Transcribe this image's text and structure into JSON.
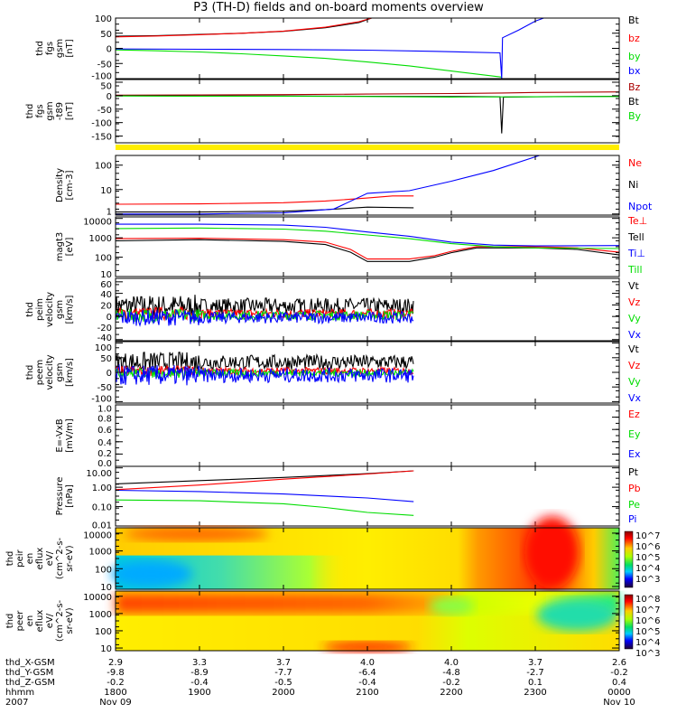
{
  "title": "P3 (TH-D) fields and on-board moments overview",
  "chart_data": {
    "type": "line",
    "x_range_hours": [
      18,
      24
    ],
    "panels": [
      {
        "id": "fgs",
        "ylabel": [
          "thd",
          "fgs",
          "gsm",
          "[nT]"
        ],
        "scale": "linear",
        "ylim": [
          -100,
          100
        ],
        "ticks": [
          {
            "v": 100,
            "l": "100"
          },
          {
            "v": 50,
            "l": "50"
          },
          {
            "v": 0,
            "l": "0"
          },
          {
            "v": -50,
            "l": "-50"
          },
          {
            "v": -100,
            "l": "-100"
          }
        ],
        "series": [
          {
            "name": "Bt",
            "color": "#000000",
            "x": [
              18,
              18.5,
              19,
              19.5,
              20,
              20.5,
              20.9,
              21.05
            ],
            "y": [
              40,
              42,
              46,
              50,
              56,
              68,
              85,
              100
            ]
          },
          {
            "name": "bz",
            "color": "#ff0000",
            "x": [
              18,
              18.5,
              19,
              19.5,
              20,
              20.5,
              20.9,
              21.05
            ],
            "y": [
              38,
              41,
              45,
              50,
              57,
              70,
              88,
              100
            ]
          },
          {
            "name": "by",
            "color": "#00dd00",
            "x": [
              18,
              18.5,
              19,
              19.5,
              20,
              20.5,
              21,
              21.5,
              22,
              22.6
            ],
            "y": [
              -5,
              -8,
              -12,
              -18,
              -25,
              -33,
              -45,
              -58,
              -75,
              -95
            ]
          },
          {
            "name": "bx",
            "color": "#0000ff",
            "x": [
              18,
              19,
              20,
              21,
              21.8,
              22.58,
              22.6,
              22.61,
              22.8,
              23,
              23.1
            ],
            "y": [
              -2,
              -3,
              -4,
              -6,
              -10,
              -15,
              -100,
              35,
              60,
              90,
              100
            ]
          }
        ]
      },
      {
        "id": "fgs_t89",
        "ylabel": [
          "thd",
          "fgs",
          "gsm",
          "-t89",
          "[nT]"
        ],
        "scale": "linear",
        "ylim": [
          -175,
          60
        ],
        "ticks": [
          {
            "v": 50,
            "l": "50"
          },
          {
            "v": 0,
            "l": "0"
          },
          {
            "v": -50,
            "l": "-50"
          },
          {
            "v": -100,
            "l": "-100"
          },
          {
            "v": -150,
            "l": "-150"
          }
        ],
        "series": [
          {
            "name": "Bz",
            "color": "#aa0000",
            "x": [
              18,
              19,
              20,
              21,
              22,
              22.6,
              23,
              24
            ],
            "y": [
              2,
              3,
              4,
              6,
              8,
              10,
              12,
              14
            ]
          },
          {
            "name": "Bt",
            "color": "#000000",
            "x": [
              18,
              19,
              20,
              21,
              22,
              22.58,
              22.6,
              22.62,
              23,
              24
            ],
            "y": [
              0,
              -1,
              -1,
              -2,
              -3,
              -4,
              -140,
              -5,
              -4,
              -2
            ]
          },
          {
            "name": "By",
            "color": "#00dd00",
            "x": [
              18,
              19,
              20,
              21,
              22,
              23,
              24
            ],
            "y": [
              -1,
              -2,
              -2,
              -3,
              -5,
              -4,
              -3
            ]
          }
        ]
      },
      {
        "id": "density",
        "ylabel": [
          "Density",
          "[cm-3]"
        ],
        "scale": "log",
        "ylim": [
          0.9,
          250
        ],
        "ticks": [
          {
            "v": 100,
            "l": "100"
          },
          {
            "v": 10,
            "l": "10"
          },
          {
            "v": 1,
            "l": "1"
          }
        ],
        "series": [
          {
            "name": "Ne",
            "color": "#ff0000",
            "x": [
              18,
              19,
              20,
              20.5,
              21,
              21.3,
              21.55
            ],
            "y": [
              2.5,
              2.6,
              2.9,
              3.4,
              4.5,
              5.5,
              5.5
            ]
          },
          {
            "name": "Ni",
            "color": "#000000",
            "x": [
              18,
              19,
              20,
              20.5,
              21,
              21.55
            ],
            "y": [
              1.2,
              1.2,
              1.3,
              1.5,
              1.9,
              1.8
            ]
          },
          {
            "name": "Npot",
            "color": "#0000ff",
            "x": [
              18,
              19,
              20,
              20.6,
              21,
              21.5,
              22,
              22.5,
              23.05
            ],
            "y": [
              1.0,
              1.0,
              1.1,
              1.6,
              7,
              9,
              22,
              60,
              250
            ]
          }
        ]
      },
      {
        "id": "temp",
        "ylabel": [
          "magt3",
          "[eV]"
        ],
        "scale": "log",
        "ylim": [
          10,
          12000
        ],
        "ticks": [
          {
            "v": 10000,
            "l": "10000"
          },
          {
            "v": 1000,
            "l": "1000"
          },
          {
            "v": 100,
            "l": "100"
          },
          {
            "v": 10,
            "l": "10"
          }
        ],
        "series": [
          {
            "name": "Te⊥",
            "color": "#ff0000",
            "x": [
              18,
              19,
              20,
              20.5,
              20.8,
              21,
              21.5,
              21.8,
              22,
              22.3,
              23,
              23.5,
              24
            ],
            "y": [
              900,
              950,
              800,
              600,
              250,
              80,
              80,
              120,
              200,
              350,
              350,
              300,
              180
            ]
          },
          {
            "name": "Tell",
            "color": "#000000",
            "x": [
              18,
              19,
              20,
              20.5,
              20.8,
              21,
              21.5,
              21.8,
              22,
              22.3,
              23,
              23.5,
              24
            ],
            "y": [
              700,
              800,
              650,
              450,
              180,
              60,
              60,
              100,
              170,
              300,
              300,
              250,
              130
            ]
          },
          {
            "name": "Ti⊥",
            "color": "#0000ff",
            "x": [
              18,
              19,
              20,
              20.5,
              21,
              21.5,
              22,
              22.5,
              23,
              24
            ],
            "y": [
              5000,
              5000,
              4500,
              3500,
              2000,
              1200,
              600,
              420,
              380,
              400
            ]
          },
          {
            "name": "Till",
            "color": "#00dd00",
            "x": [
              18,
              19,
              20,
              20.5,
              21,
              21.5,
              22,
              22.5,
              23,
              24
            ],
            "y": [
              3000,
              3200,
              2800,
              2200,
              1400,
              900,
              500,
              350,
              300,
              280
            ]
          }
        ]
      },
      {
        "id": "peim",
        "ylabel": [
          "thd",
          "peim",
          "velocity",
          "gsm",
          "[km/s]"
        ],
        "scale": "linear",
        "ylim": [
          -42,
          66
        ],
        "noise": true,
        "x_end": 21.55,
        "ticks": [
          {
            "v": 60,
            "l": "60"
          },
          {
            "v": 40,
            "l": "40"
          },
          {
            "v": 20,
            "l": "20"
          },
          {
            "v": 0,
            "l": "0"
          },
          {
            "v": -20,
            "l": "-20"
          },
          {
            "v": -40,
            "l": "-40"
          }
        ],
        "series": [
          {
            "name": "Vt",
            "color": "#000000",
            "mean": 18,
            "amp": 14
          },
          {
            "name": "Vz",
            "color": "#ff0000",
            "mean": 5,
            "amp": 8
          },
          {
            "name": "Vy",
            "color": "#00dd00",
            "mean": 2,
            "amp": 8
          },
          {
            "name": "Vx",
            "color": "#0000ff",
            "mean": -2,
            "amp": 10
          }
        ]
      },
      {
        "id": "peem",
        "ylabel": [
          "thd",
          "peem",
          "velocity",
          "gsm",
          "[km/s]"
        ],
        "scale": "linear",
        "ylim": [
          -105,
          105
        ],
        "noise": true,
        "x_end": 21.55,
        "ticks": [
          {
            "v": 100,
            "l": "100"
          },
          {
            "v": 50,
            "l": "50"
          },
          {
            "v": 0,
            "l": "0"
          },
          {
            "v": -50,
            "l": "-50"
          },
          {
            "v": -100,
            "l": "-100"
          }
        ],
        "series": [
          {
            "name": "Vt",
            "color": "#000000",
            "mean": 35,
            "amp": 25
          },
          {
            "name": "Vz",
            "color": "#ff0000",
            "mean": 5,
            "amp": 12
          },
          {
            "name": "Vy",
            "color": "#00dd00",
            "mean": -2,
            "amp": 12
          },
          {
            "name": "Vx",
            "color": "#0000ff",
            "mean": -10,
            "amp": 25
          }
        ]
      },
      {
        "id": "evxb",
        "ylabel": [
          "E=-VxB",
          "[mV/m]"
        ],
        "scale": "linear",
        "ylim": [
          0,
          1
        ],
        "ticks": [
          {
            "v": 1,
            "l": "1.0"
          },
          {
            "v": 0.8,
            "l": "0.8"
          },
          {
            "v": 0.6,
            "l": "0.6"
          },
          {
            "v": 0.4,
            "l": "0.4"
          },
          {
            "v": 0.2,
            "l": "0.2"
          },
          {
            "v": 0,
            "l": "0.0"
          }
        ],
        "series": [
          {
            "name": "Ez",
            "color": "#ff0000",
            "x": [],
            "y": []
          },
          {
            "name": "Ey",
            "color": "#00dd00",
            "x": [],
            "y": []
          },
          {
            "name": "Ex",
            "color": "#0000ff",
            "x": [],
            "y": []
          }
        ]
      },
      {
        "id": "pressure",
        "ylabel": [
          "Pressure",
          "[nPa]"
        ],
        "scale": "log",
        "ylim": [
          0.01,
          12
        ],
        "ticks": [
          {
            "v": 10,
            "l": "10.00"
          },
          {
            "v": 1,
            "l": "1.00"
          },
          {
            "v": 0.1,
            "l": "0.10"
          },
          {
            "v": 0.01,
            "l": "0.01"
          }
        ],
        "series": [
          {
            "name": "Pt",
            "color": "#000000",
            "x": [
              18,
              19,
              20,
              21,
              21.55
            ],
            "y": [
              1.5,
              2.2,
              3.2,
              5,
              7
            ]
          },
          {
            "name": "Pb",
            "color": "#ff0000",
            "x": [
              18,
              19,
              20,
              21,
              21.55
            ],
            "y": [
              0.75,
              1.3,
              2.6,
              4.8,
              7
            ]
          },
          {
            "name": "Pe",
            "color": "#00dd00",
            "x": [
              18,
              19,
              20,
              20.5,
              21,
              21.55
            ],
            "y": [
              0.22,
              0.2,
              0.14,
              0.09,
              0.05,
              0.035
            ]
          },
          {
            "name": "Pi",
            "color": "#0000ff",
            "x": [
              18,
              19,
              20,
              21,
              21.55
            ],
            "y": [
              0.7,
              0.6,
              0.45,
              0.28,
              0.18
            ]
          }
        ]
      },
      {
        "id": "ion_spec",
        "type": "heatmap",
        "ylabel": [
          "thd",
          "peir",
          "en",
          "eflux",
          "eV/",
          "(cm^2-s-",
          "sr-eV)"
        ],
        "scale": "log",
        "ylim": [
          7,
          20000
        ],
        "ticks": [
          {
            "v": 10000,
            "l": "10000"
          },
          {
            "v": 1000,
            "l": "1000"
          },
          {
            "v": 100,
            "l": "100"
          },
          {
            "v": 10,
            "l": "10"
          }
        ],
        "colorbar": [
          "10^7",
          "10^6",
          "10^5",
          "10^4",
          "10^3"
        ]
      },
      {
        "id": "electron_spec",
        "type": "heatmap",
        "ylabel": [
          "thd",
          "peer",
          "en",
          "eflux",
          "eV/",
          "(cm^2-s-",
          "sr-eV)"
        ],
        "scale": "log",
        "ylim": [
          7,
          20000
        ],
        "ticks": [
          {
            "v": 10000,
            "l": "10000"
          },
          {
            "v": 1000,
            "l": "1000"
          },
          {
            "v": 100,
            "l": "100"
          },
          {
            "v": 10,
            "l": "10"
          }
        ],
        "colorbar": [
          "10^8",
          "10^7",
          "10^6",
          "10^5",
          "10^4",
          "10^3"
        ]
      }
    ],
    "xaxis": {
      "row_labels": [
        "thd_X-GSM",
        "thd_Y-GSM",
        "thd_Z-GSM",
        "hhmm",
        "2007"
      ],
      "columns": [
        {
          "x": "2.9",
          "y": "-9.8",
          "z": "-0.2",
          "hhmm": "1800",
          "date": "Nov 09"
        },
        {
          "x": "3.3",
          "y": "-8.9",
          "z": "-0.4",
          "hhmm": "1900",
          "date": ""
        },
        {
          "x": "3.7",
          "y": "-7.7",
          "z": "-0.5",
          "hhmm": "2000",
          "date": ""
        },
        {
          "x": "4.0",
          "y": "-6.4",
          "z": "-0.4",
          "hhmm": "2100",
          "date": ""
        },
        {
          "x": "4.0",
          "y": "-4.8",
          "z": "-0.2",
          "hhmm": "2200",
          "date": ""
        },
        {
          "x": "3.7",
          "y": "-2.7",
          "z": "0.1",
          "hhmm": "2300",
          "date": ""
        },
        {
          "x": "2.6",
          "y": "-0.2",
          "z": "0.4",
          "hhmm": "0000",
          "date": "Nov 10"
        }
      ]
    }
  }
}
